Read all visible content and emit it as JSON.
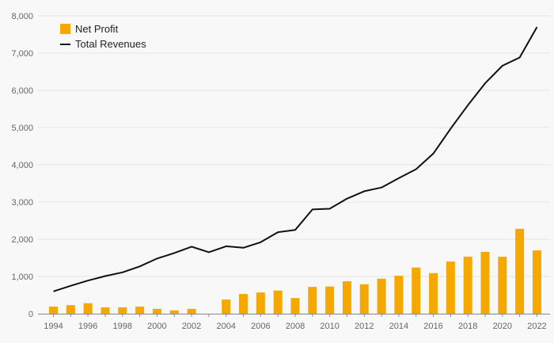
{
  "chart_data": {
    "type": "bar+line",
    "title": "",
    "xlabel": "",
    "ylabel": "",
    "ylim": [
      0,
      8000
    ],
    "y_ticks": [
      0,
      1000,
      2000,
      3000,
      4000,
      5000,
      6000,
      7000,
      8000
    ],
    "y_tick_labels": [
      "0",
      "1,000",
      "2,000",
      "3,000",
      "4,000",
      "5,000",
      "6,000",
      "7,000",
      "8,000"
    ],
    "x_tick_labels": [
      "1994",
      "1996",
      "1998",
      "2000",
      "2002",
      "2004",
      "2006",
      "2008",
      "2010",
      "2012",
      "2014",
      "2016",
      "2018",
      "2020",
      "2022"
    ],
    "categories": [
      1994,
      1995,
      1996,
      1997,
      1998,
      1999,
      2000,
      2001,
      2002,
      2003,
      2004,
      2005,
      2006,
      2007,
      2008,
      2009,
      2010,
      2011,
      2012,
      2013,
      2014,
      2015,
      2016,
      2017,
      2018,
      2019,
      2020,
      2021,
      2022
    ],
    "legend_position": "top-left",
    "grid": true,
    "series": [
      {
        "name": "Net Profit",
        "kind": "bar",
        "color": "#f5a800",
        "values": [
          190,
          230,
          280,
          170,
          170,
          190,
          130,
          90,
          130,
          0,
          380,
          530,
          570,
          620,
          420,
          720,
          730,
          870,
          790,
          940,
          1020,
          1240,
          1090,
          1400,
          1530,
          1660,
          1530,
          2280,
          1700
        ]
      },
      {
        "name": "Total Revenues",
        "kind": "line",
        "color": "#111111",
        "values": [
          600,
          750,
          890,
          1010,
          1110,
          1270,
          1480,
          1630,
          1800,
          1650,
          1810,
          1770,
          1920,
          2190,
          2250,
          2800,
          2820,
          3090,
          3290,
          3390,
          3640,
          3880,
          4300,
          4970,
          5600,
          6190,
          6660,
          6880,
          7700
        ]
      }
    ]
  }
}
